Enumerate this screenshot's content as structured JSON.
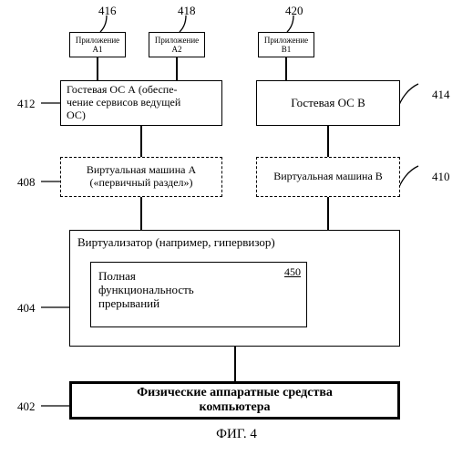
{
  "colors": {
    "bg": "#ffffff",
    "stroke": "#000000",
    "text": "#000000"
  },
  "typography": {
    "font_family": "Times New Roman, serif",
    "base_size_pt": 10,
    "small_size_pt": 8
  },
  "diagram": {
    "type": "flowchart",
    "caption": "ФИГ. 4",
    "nodes": {
      "app_a1": {
        "label": "Приложение\nА1",
        "ref": "416",
        "border": "solid"
      },
      "app_a2": {
        "label": "Приложение\nА2",
        "ref": "418",
        "border": "solid"
      },
      "app_b1": {
        "label": "Приложение\nВ1",
        "ref": "420",
        "border": "solid"
      },
      "guest_os_a": {
        "label": "Гостевая ОС А (обеспе-\nчение сервисов  ведущей\nОС)",
        "ref": "412",
        "border": "solid"
      },
      "guest_os_b": {
        "label": "Гостевая ОС В",
        "ref": "414",
        "border": "solid"
      },
      "vm_a": {
        "label": "Виртуальная машина А\n(«первичный раздел»)",
        "ref": "408",
        "border": "dashed"
      },
      "vm_b": {
        "label": "Виртуальная машина В",
        "ref": "410",
        "border": "dashed"
      },
      "virtualizer": {
        "label": "Виртуализатор (например, гипервизор)",
        "ref": "404",
        "border": "solid"
      },
      "full_func": {
        "label": "Полная\nфункциональность\nпрерываний",
        "ref": "450",
        "border": "solid"
      },
      "hardware": {
        "label": "Физические аппаратные средства\nкомпьютера",
        "ref": "402",
        "border": "heavy"
      }
    },
    "edges": [
      [
        "app_a1",
        "guest_os_a"
      ],
      [
        "app_a2",
        "guest_os_a"
      ],
      [
        "app_b1",
        "guest_os_b"
      ],
      [
        "guest_os_a",
        "vm_a"
      ],
      [
        "guest_os_b",
        "vm_b"
      ],
      [
        "vm_a",
        "virtualizer"
      ],
      [
        "vm_b",
        "virtualizer"
      ],
      [
        "virtualizer",
        "hardware"
      ]
    ]
  }
}
